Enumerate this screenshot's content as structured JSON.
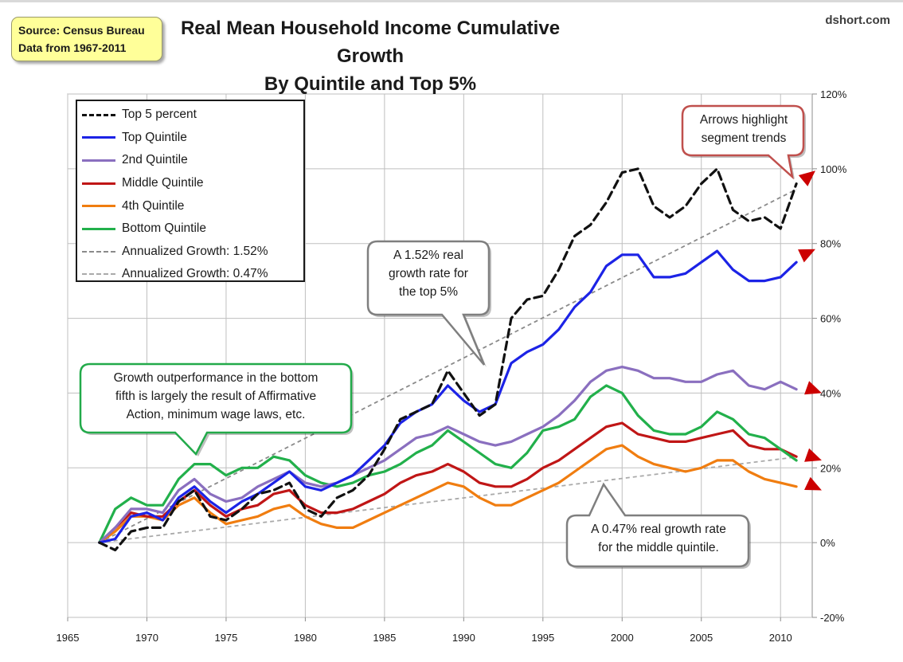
{
  "source_box": {
    "line1": "Source: Census Bureau",
    "line2": "Data from 1967-2011"
  },
  "title": {
    "line1": "Real Mean Household Income Cumulative Growth",
    "line2": "By Quintile and Top 5%"
  },
  "brand": "dshort.com",
  "callouts": {
    "bottom": {
      "lines": [
        "Growth outperformance  in the bottom",
        "fifth is largely the result of Affirmative",
        "Action, minimum wage laws, etc."
      ],
      "border_color": "#22aa4a"
    },
    "top5": {
      "lines": [
        "A 1.52% real",
        "growth rate for",
        "the top 5%"
      ],
      "border_color": "#7f7f7f"
    },
    "middle": {
      "lines": [
        "A 0.47% real growth rate",
        "for the middle quintile."
      ],
      "border_color": "#7f7f7f"
    },
    "arrows": {
      "lines": [
        "Arrows highlight",
        "segment trends"
      ],
      "border_color": "#c0504d"
    }
  },
  "colors": {
    "top5": "#111111",
    "top": "#1c23e6",
    "second": "#8a6fbf",
    "middle": "#c01616",
    "fourth": "#f07d10",
    "bottom": "#22b04b",
    "trend152": "#8a8a8a",
    "trend047": "#aaaaaa",
    "arrow": "#cc0000",
    "grid": "#bfbfbf"
  },
  "chart_data": {
    "type": "line",
    "title": "Real Mean Household Income Cumulative Growth By Quintile and Top 5%",
    "x": [
      1967,
      1968,
      1969,
      1970,
      1971,
      1972,
      1973,
      1974,
      1975,
      1976,
      1977,
      1978,
      1979,
      1980,
      1981,
      1982,
      1983,
      1984,
      1985,
      1986,
      1987,
      1988,
      1989,
      1990,
      1991,
      1992,
      1993,
      1994,
      1995,
      1996,
      1997,
      1998,
      1999,
      2000,
      2001,
      2002,
      2003,
      2004,
      2005,
      2006,
      2007,
      2008,
      2009,
      2010,
      2011
    ],
    "xlim": [
      1965,
      2012
    ],
    "x_ticks": [
      1965,
      1970,
      1975,
      1980,
      1985,
      1990,
      1995,
      2000,
      2005,
      2010
    ],
    "ylim": [
      -20,
      120
    ],
    "y_ticks": [
      -20,
      0,
      20,
      40,
      60,
      80,
      100,
      120
    ],
    "y_tick_labels": [
      "-20%",
      "0%",
      "20%",
      "40%",
      "60%",
      "80%",
      "100%",
      "120%"
    ],
    "y_axis_side": "right",
    "grid": true,
    "legend_position": "top-left",
    "series": [
      {
        "name": "Top 5 percent",
        "key": "top5",
        "style": "dashed",
        "values": [
          0,
          -2,
          3,
          4,
          4,
          11,
          14,
          7,
          6,
          9,
          13,
          14,
          16,
          9,
          7,
          12,
          14,
          18,
          25,
          33,
          35,
          37,
          46,
          40,
          34,
          37,
          60,
          65,
          66,
          73,
          82,
          85,
          91,
          99,
          100,
          90,
          87,
          90,
          96,
          100,
          89,
          86,
          87,
          84,
          96
        ]
      },
      {
        "name": "Top Quintile",
        "key": "top",
        "style": "solid",
        "values": [
          0,
          1,
          7,
          8,
          6,
          12,
          15,
          11,
          8,
          11,
          13,
          16,
          19,
          15,
          14,
          16,
          18,
          22,
          26,
          32,
          35,
          37,
          42,
          38,
          35,
          37,
          48,
          51,
          53,
          57,
          63,
          67,
          74,
          77,
          77,
          71,
          71,
          72,
          75,
          78,
          73,
          70,
          70,
          71,
          75
        ]
      },
      {
        "name": "2nd Quintile",
        "key": "second",
        "style": "solid",
        "values": [
          0,
          4,
          9,
          9,
          8,
          14,
          17,
          13,
          11,
          12,
          15,
          17,
          19,
          16,
          15,
          16,
          18,
          20,
          22,
          25,
          28,
          29,
          31,
          29,
          27,
          26,
          27,
          29,
          31,
          34,
          38,
          43,
          46,
          47,
          46,
          44,
          44,
          43,
          43,
          45,
          46,
          42,
          41,
          43,
          41
        ]
      },
      {
        "name": "Middle Quintile",
        "key": "middle",
        "style": "solid",
        "values": [
          0,
          4,
          8,
          7,
          7,
          11,
          14,
          10,
          7,
          9,
          10,
          13,
          14,
          10,
          8,
          8,
          9,
          11,
          13,
          16,
          18,
          19,
          21,
          19,
          16,
          15,
          15,
          17,
          20,
          22,
          25,
          28,
          31,
          32,
          29,
          28,
          27,
          27,
          28,
          29,
          30,
          26,
          25,
          25,
          23
        ]
      },
      {
        "name": "4th Quintile",
        "key": "fourth",
        "style": "solid",
        "values": [
          0,
          3,
          7,
          7,
          6,
          10,
          12,
          8,
          5,
          6,
          7,
          9,
          10,
          7,
          5,
          4,
          4,
          6,
          8,
          10,
          12,
          14,
          16,
          15,
          12,
          10,
          10,
          12,
          14,
          16,
          19,
          22,
          25,
          26,
          23,
          21,
          20,
          19,
          20,
          22,
          22,
          19,
          17,
          16,
          15
        ]
      },
      {
        "name": "Bottom Quintile",
        "key": "bottom",
        "style": "solid",
        "values": [
          0,
          9,
          12,
          10,
          10,
          17,
          21,
          21,
          18,
          20,
          20,
          23,
          22,
          18,
          16,
          15,
          16,
          18,
          19,
          21,
          24,
          26,
          30,
          27,
          24,
          21,
          20,
          24,
          30,
          31,
          33,
          39,
          42,
          40,
          34,
          30,
          29,
          29,
          31,
          35,
          33,
          29,
          28,
          25,
          22
        ]
      },
      {
        "name": "Annualized Growth: 1.52%",
        "key": "trend152",
        "style": "dashed-thin",
        "x": [
          1967,
          2011
        ],
        "values": [
          0,
          94.5
        ]
      },
      {
        "name": "Annualized Growth: 0.47%",
        "key": "trend047",
        "style": "dashed-thin",
        "x": [
          1967,
          2011
        ],
        "values": [
          0,
          22.9
        ]
      }
    ]
  }
}
